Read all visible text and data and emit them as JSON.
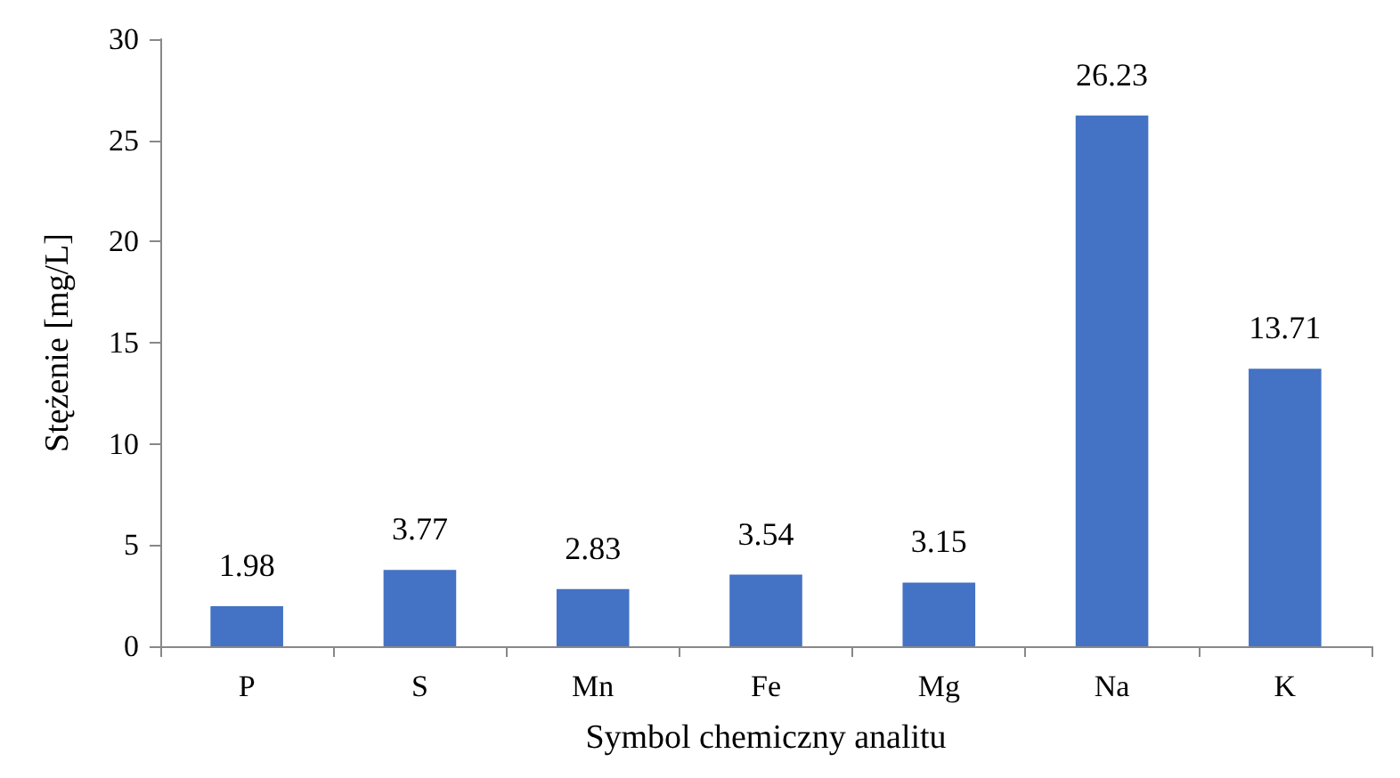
{
  "chart_data": {
    "type": "bar",
    "xlabel": "Symbol chemiczny analitu",
    "ylabel": "Stężenie [mg/L]",
    "categories": [
      "P",
      "S",
      "Mn",
      "Fe",
      "Mg",
      "Na",
      "K"
    ],
    "values": [
      1.98,
      3.77,
      2.83,
      3.54,
      3.15,
      26.23,
      13.71
    ],
    "color": "#4472c4",
    "ylim": [
      0,
      30
    ],
    "yticks": [
      0,
      5,
      10,
      15,
      20,
      25,
      30
    ],
    "grid": false,
    "data_labels": true
  }
}
